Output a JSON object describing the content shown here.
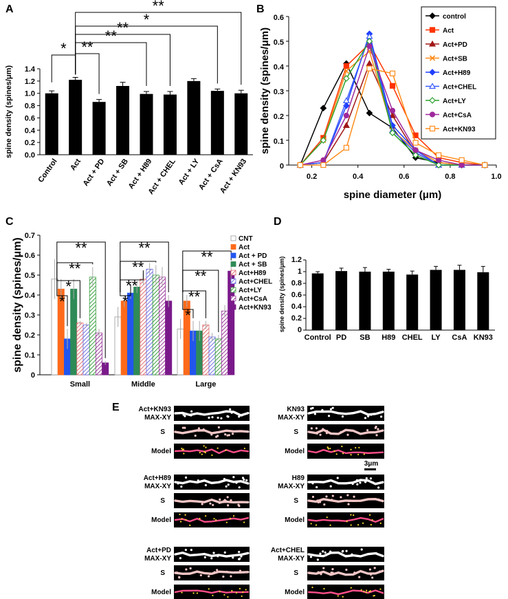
{
  "panels": {
    "a": "A",
    "b": "B",
    "c": "C",
    "d": "D",
    "e": "E"
  },
  "colors": {
    "bar": "#000000",
    "control": "#000000",
    "Act": "#ff3300",
    "Act+PD": "#a01818",
    "Act+SB": "#ff8c1a",
    "Act+H89": "#1f3fff",
    "Act+CHEL": "#3a5bff",
    "Act+LY": "#2ca02c",
    "Act+CsA": "#a0289c",
    "Act+KN93": "#ff8c1a",
    "CNT": "#ffffff",
    "C_Act": "#ff6a1a",
    "C_PD": "#2255ee",
    "C_SB": "#2e8b57",
    "C_H89": "#e07070",
    "C_CHEL": "#7070e0",
    "C_LY": "#3aa040",
    "C_CsA": "#9a3a9a",
    "C_KN93": "#7a1a8a",
    "dendrite": "#ffffff",
    "spine": "#ff4f8a"
  },
  "chart_data": [
    {
      "id": "A",
      "type": "bar",
      "categories": [
        "Control",
        "Act",
        "Act + PD",
        "Act + SB",
        "Act + H89",
        "Act + CHEL",
        "Act + LY",
        "Act + CsA",
        "Act + KN93"
      ],
      "values": [
        1.0,
        1.22,
        0.86,
        1.12,
        0.99,
        0.98,
        1.2,
        1.04,
        1.0
      ],
      "errors": [
        0.04,
        0.04,
        0.04,
        0.06,
        0.04,
        0.05,
        0.04,
        0.03,
        0.05
      ],
      "ylabel": "spine density (spines/μm)",
      "ylim": [
        0,
        1.4
      ],
      "yticks": [
        "0.0",
        "0.2",
        "0.4",
        "0.6",
        "0.8",
        "1.0",
        "1.2",
        "1.4"
      ],
      "significance": [
        {
          "from": "Control",
          "to": "Act",
          "mark": "*"
        },
        {
          "from": "Act",
          "to": "Act + PD",
          "mark": "**"
        },
        {
          "from": "Act",
          "to": "Act + H89",
          "mark": "**"
        },
        {
          "from": "Act",
          "to": "Act + CHEL",
          "mark": "**"
        },
        {
          "from": "Act",
          "to": "Act + CsA",
          "mark": "*"
        },
        {
          "from": "Act",
          "to": "Act + KN93",
          "mark": "**"
        }
      ]
    },
    {
      "id": "B",
      "type": "line",
      "x": [
        0.15,
        0.25,
        0.35,
        0.45,
        0.55,
        0.65,
        0.75,
        0.85,
        0.95
      ],
      "xticks": [
        "0.2",
        "0.4",
        "0.6",
        "0.8",
        "1.0"
      ],
      "yticks": [
        "0",
        "0.1",
        "0.2",
        "0.3",
        "0.4",
        "0.5",
        "0.6"
      ],
      "xlim": [
        0.1,
        1.0
      ],
      "ylim": [
        0,
        0.6
      ],
      "xlabel": "spine diameter (μm)",
      "ylabel": "spine density (spines/μm)",
      "series": [
        {
          "name": "control",
          "marker": "diamond",
          "fill": true,
          "values": [
            0,
            0.23,
            0.41,
            0.21,
            0.15,
            0.03,
            0.01,
            0.0,
            0.0
          ]
        },
        {
          "name": "Act",
          "marker": "square",
          "fill": true,
          "values": [
            0,
            0.11,
            0.4,
            0.49,
            0.32,
            0.12,
            0.03,
            0.01,
            0.0
          ]
        },
        {
          "name": "Act+PD",
          "marker": "triangle",
          "fill": true,
          "values": [
            0,
            0.01,
            0.16,
            0.41,
            0.2,
            0.05,
            0.0,
            0.0,
            0.0
          ]
        },
        {
          "name": "Act+SB",
          "marker": "cross",
          "fill": true,
          "values": [
            0,
            0.1,
            0.38,
            0.46,
            0.14,
            0.06,
            0.01,
            0.0,
            0.0
          ]
        },
        {
          "name": "Act+H89",
          "marker": "diamond",
          "fill": true,
          "values": [
            0,
            0.01,
            0.24,
            0.53,
            0.16,
            0.06,
            0.0,
            0.0,
            0.0
          ]
        },
        {
          "name": "Act+CHEL",
          "marker": "triangle",
          "fill": false,
          "values": [
            0,
            0.01,
            0.26,
            0.52,
            0.14,
            0.05,
            0.0,
            0.0,
            0.0
          ]
        },
        {
          "name": "Act+LY",
          "marker": "diamond",
          "fill": false,
          "values": [
            0,
            0.1,
            0.35,
            0.5,
            0.13,
            0.04,
            0.0,
            0.0,
            0.0
          ]
        },
        {
          "name": "Act+CsA",
          "marker": "circle",
          "fill": true,
          "values": [
            0,
            0.02,
            0.2,
            0.48,
            0.22,
            0.06,
            0.02,
            0.0,
            0.0
          ]
        },
        {
          "name": "Act+KN93",
          "marker": "square",
          "fill": false,
          "values": [
            0,
            0.0,
            0.07,
            0.39,
            0.37,
            0.09,
            0.04,
            0.02,
            0.0
          ]
        }
      ]
    },
    {
      "id": "C",
      "type": "bar",
      "categories": [
        "Small",
        "Middle",
        "Large"
      ],
      "ylabel": "spine density (spines/μm)",
      "ylim": [
        0,
        0.7
      ],
      "yticks": [
        "0",
        "0.1",
        "0.2",
        "0.3",
        "0.4",
        "0.5",
        "0.6",
        "0.7"
      ],
      "series": [
        {
          "name": "CNT",
          "values": [
            0.48,
            0.29,
            0.23
          ],
          "errors": [
            0.1,
            0.05,
            0.05
          ]
        },
        {
          "name": "Act",
          "values": [
            0.43,
            0.37,
            0.37
          ],
          "errors": [
            0.05,
            0.03,
            0.03
          ]
        },
        {
          "name": "Act + PD",
          "values": [
            0.18,
            0.41,
            0.22
          ],
          "errors": [
            0.05,
            0.03,
            0.05
          ]
        },
        {
          "name": "Act + SB",
          "values": [
            0.43,
            0.44,
            0.22
          ],
          "errors": [
            0.05,
            0.03,
            0.05
          ]
        },
        {
          "name": "Act+H89",
          "values": [
            0.26,
            0.48,
            0.25
          ],
          "errors": [
            0.01,
            0.03,
            0.02
          ]
        },
        {
          "name": "Act+CHEL",
          "values": [
            0.25,
            0.53,
            0.19
          ],
          "errors": [
            0.01,
            0.03,
            0.02
          ]
        },
        {
          "name": "Act+LY",
          "values": [
            0.49,
            0.5,
            0.18
          ],
          "errors": [
            0.05,
            0.05,
            0.02
          ]
        },
        {
          "name": "Act+CsA",
          "values": [
            0.21,
            0.49,
            0.32
          ],
          "errors": [
            0.02,
            0.05,
            0.03
          ]
        },
        {
          "name": "Act+KN93",
          "values": [
            0.06,
            0.37,
            0.52
          ],
          "errors": [
            0.01,
            0.03,
            0.04
          ]
        }
      ],
      "significance": {
        "Small": [
          "*",
          "*",
          "**",
          "**"
        ],
        "Middle": [
          "*",
          "**",
          "**",
          "**"
        ],
        "Large": [
          "*",
          "**",
          "**",
          "**"
        ]
      }
    },
    {
      "id": "D",
      "type": "bar",
      "categories": [
        "Control",
        "PD",
        "SB",
        "H89",
        "CHEL",
        "LY",
        "CsA",
        "KN93"
      ],
      "values": [
        0.97,
        1.01,
        1.0,
        1.0,
        0.95,
        1.03,
        1.03,
        0.99
      ],
      "errors": [
        0.03,
        0.05,
        0.07,
        0.04,
        0.06,
        0.06,
        0.08,
        0.1
      ],
      "ylabel": "spine density (spines/μm)",
      "ylim": [
        0,
        1.2
      ],
      "yticks": [
        "0",
        "0.2",
        "0.4",
        "0.6",
        "0.8",
        "1",
        "1.2"
      ]
    }
  ],
  "panel_e": {
    "scale_bar": "3μm",
    "groups": [
      {
        "title": "Act+KN93",
        "rows": [
          "MAX-XY",
          "S",
          "Model"
        ]
      },
      {
        "title": "KN93",
        "rows": [
          "MAX-XY",
          "S",
          "Model"
        ]
      },
      {
        "title": "Act+H89",
        "rows": [
          "MAX-XY",
          "S",
          "Model"
        ]
      },
      {
        "title": "H89",
        "rows": [
          "MAX-XY",
          "S",
          "Model"
        ]
      },
      {
        "title": "Act+PD",
        "rows": [
          "MAX-XY",
          "S",
          "Model"
        ]
      },
      {
        "title": "Act+CHEL",
        "rows": [
          "MAX-XY",
          "S",
          "Model"
        ]
      }
    ]
  }
}
